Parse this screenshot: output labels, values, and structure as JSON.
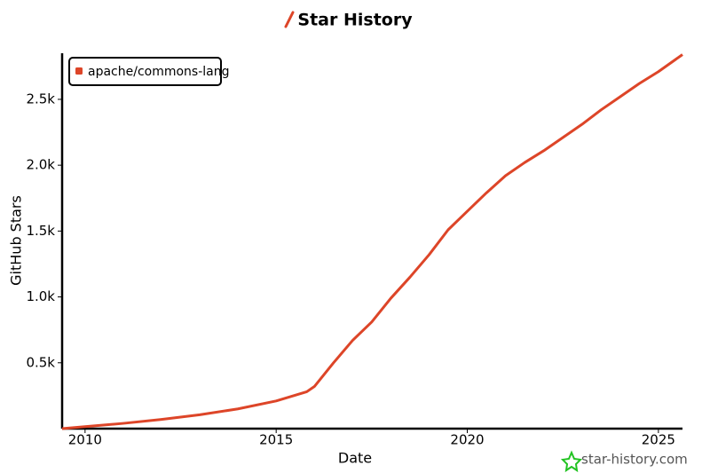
{
  "chart_data": {
    "type": "line",
    "title": "Star History",
    "x_label": "Date",
    "y_label": "GitHub Stars",
    "watermark": "star-history.com",
    "x": [
      2009.4,
      2010,
      2011,
      2012,
      2013,
      2014,
      2015,
      2015.8,
      2016,
      2016.5,
      2017,
      2017.5,
      2018,
      2018.5,
      2019,
      2019.5,
      2020,
      2020.5,
      2021,
      2021.5,
      2022,
      2022.5,
      2023,
      2023.5,
      2024,
      2024.5,
      2025,
      2025.63
    ],
    "series": [
      {
        "name": "apache/commons-lang",
        "color": "#dd4528",
        "values": [
          0,
          15,
          40,
          70,
          105,
          150,
          210,
          280,
          320,
          500,
          670,
          810,
          990,
          1150,
          1320,
          1510,
          1650,
          1790,
          1920,
          2020,
          2110,
          2210,
          2310,
          2420,
          2520,
          2620,
          2710,
          2840
        ]
      }
    ],
    "xlim": [
      2009.4,
      2025.63
    ],
    "xticks": [
      2010,
      2015,
      2020,
      2025
    ],
    "ylim": [
      0,
      2850
    ],
    "yticks": [
      {
        "value": 500,
        "label": "0.5k"
      },
      {
        "value": 1000,
        "label": "1.0k"
      },
      {
        "value": 1500,
        "label": "1.5k"
      },
      {
        "value": 2000,
        "label": "2.0k"
      },
      {
        "value": 2500,
        "label": "2.5k"
      }
    ],
    "legend": "top-left"
  }
}
